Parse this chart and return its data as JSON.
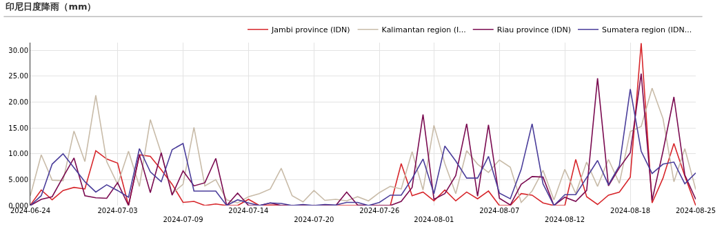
{
  "chart_data": {
    "type": "line",
    "title": "印尼日度降雨（mm）",
    "categories": [
      "2024-06-24",
      null,
      null,
      null,
      null,
      null,
      null,
      null,
      "2024-07-03",
      null,
      null,
      null,
      null,
      null,
      "2024-07-09",
      null,
      null,
      null,
      null,
      null,
      "2024-07-14",
      null,
      null,
      null,
      null,
      null,
      "2024-07-20",
      null,
      null,
      null,
      null,
      null,
      "2024-07-26",
      null,
      null,
      null,
      null,
      "2024-08-01",
      null,
      null,
      null,
      null,
      null,
      "2024-08-07",
      null,
      null,
      null,
      null,
      null,
      "2024-08-12",
      null,
      null,
      null,
      null,
      null,
      "2024-08-18",
      null,
      null,
      null,
      null,
      null,
      "2024-08-25"
    ],
    "series": [
      {
        "name": "Jambi province (IDN)",
        "color": "#d7262b",
        "values": [
          0.1,
          3.0,
          1.1,
          2.9,
          3.5,
          3.2,
          10.6,
          9.0,
          8.2,
          0,
          9.8,
          9.5,
          6.9,
          4.1,
          0.6,
          0.8,
          0,
          0.3,
          0,
          0,
          1.2,
          0,
          0.1,
          0,
          0,
          0,
          0,
          0,
          0,
          0,
          0,
          0,
          0,
          0,
          8.1,
          1.9,
          2.6,
          0.9,
          3.0,
          0.9,
          2.6,
          1.3,
          2.8,
          0,
          0,
          2.3,
          2.0,
          0.5,
          0,
          0,
          8.9,
          1.7,
          0.2,
          2.0,
          2.6,
          5.5,
          31.4,
          0.5,
          5.3,
          12.0,
          5.7,
          0
        ]
      },
      {
        "name": "Kalimantan region (I...",
        "color": "#c8bba8",
        "values": [
          1.9,
          9.8,
          4.9,
          4.8,
          14.4,
          8.5,
          21.3,
          8.5,
          4.1,
          10.5,
          3.7,
          16.6,
          10.1,
          2.3,
          4.1,
          15.1,
          3.8,
          5.0,
          1.1,
          0.5,
          1.7,
          2.3,
          3.2,
          7.2,
          1.9,
          0.7,
          2.9,
          1.0,
          1.2,
          0.9,
          1.7,
          0.9,
          2.5,
          3.7,
          3.2,
          10.4,
          3.0,
          15.5,
          8.1,
          2.3,
          10.6,
          8.0,
          6.4,
          8.8,
          7.4,
          0.6,
          2.8,
          6.8,
          1.1,
          7.0,
          2.3,
          8.4,
          3.7,
          8.9,
          4.3,
          14.3,
          15.3,
          22.7,
          16.8,
          4.6,
          11.0,
          3.1
        ]
      },
      {
        "name": "Riau province (IDN)",
        "color": "#7a0a50",
        "values": [
          0,
          1.2,
          1.7,
          5.5,
          9.2,
          1.9,
          1.5,
          1.4,
          4.4,
          0,
          9.8,
          2.5,
          10.2,
          2.0,
          6.7,
          3.8,
          4.4,
          9.1,
          0,
          2.4,
          0,
          0,
          0.5,
          0,
          0,
          0,
          0,
          0,
          0,
          2.6,
          0.1,
          0,
          0,
          0,
          0.8,
          3.5,
          17.6,
          1.2,
          2.3,
          5.8,
          15.8,
          1.8,
          15.6,
          1.4,
          0.1,
          4.1,
          5.6,
          5.5,
          0,
          1.6,
          0.8,
          2.9,
          24.6,
          3.8,
          7.3,
          10.2,
          25.5,
          1.0,
          10.5,
          21.0,
          5.9,
          1.2
        ]
      },
      {
        "name": "Sumatera region (IDN...",
        "color": "#4a3d9a",
        "values": [
          0,
          1.9,
          8.0,
          10.0,
          7.3,
          4.6,
          2.6,
          4.0,
          2.9,
          1.6,
          11.0,
          6.5,
          4.6,
          10.8,
          12.0,
          2.8,
          2.8,
          2.8,
          0,
          1.1,
          0.5,
          0,
          0.5,
          0.4,
          0,
          0.2,
          0,
          0.2,
          0.1,
          0.6,
          0.6,
          0,
          0.6,
          2.0,
          2.0,
          5.2,
          9.0,
          2.3,
          11.5,
          8.6,
          5.3,
          5.3,
          9.5,
          2.4,
          1.3,
          7.0,
          15.8,
          4.2,
          0,
          2.1,
          2.1,
          5.4,
          8.7,
          4.0,
          7.7,
          22.5,
          10.5,
          6.2,
          8.0,
          8.4,
          4.2,
          6.3
        ]
      }
    ],
    "ylim": [
      0,
      31.5
    ],
    "yticks": [
      {
        "value": 0,
        "label": "0.000"
      },
      {
        "value": 5,
        "label": "5.000"
      },
      {
        "value": 10,
        "label": "10.00"
      },
      {
        "value": 15,
        "label": "15.00"
      },
      {
        "value": 20,
        "label": "20.00"
      },
      {
        "value": 25,
        "label": "25.00"
      },
      {
        "value": 30,
        "label": "30.00"
      }
    ],
    "grid": true,
    "legend": "top right",
    "marker": "none",
    "line_style": "solid"
  }
}
